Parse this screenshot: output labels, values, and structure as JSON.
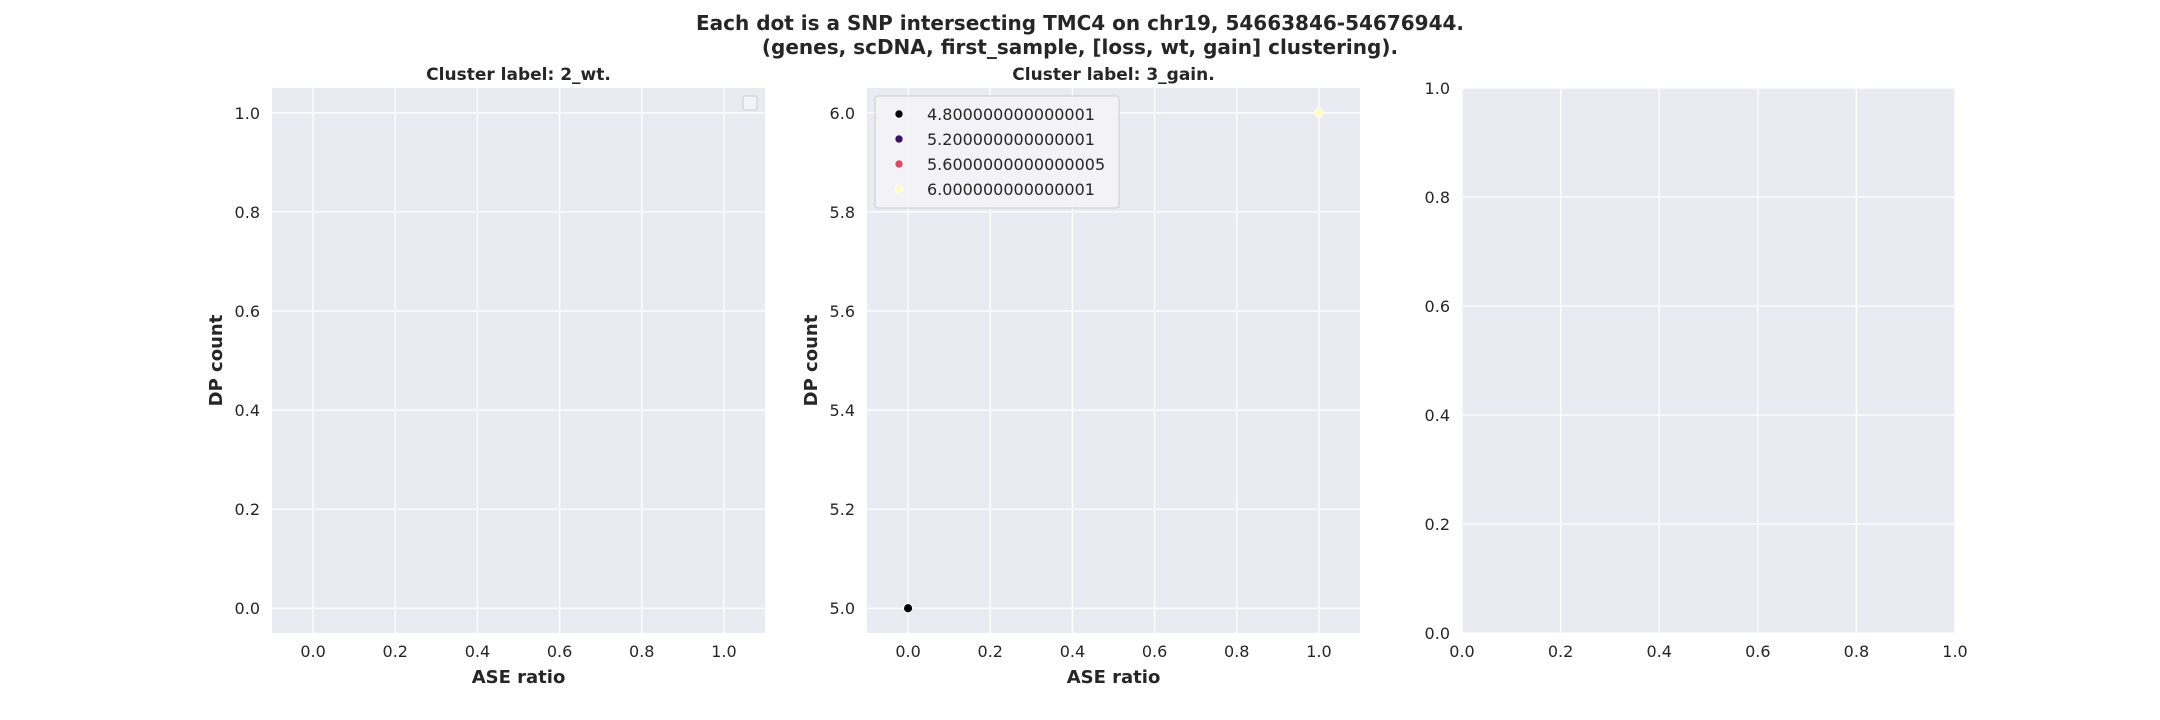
{
  "figure": {
    "suptitle_line1": "Each dot is a SNP intersecting TMC4 on chr19, 54663846-54676944.",
    "suptitle_line2": "(genes, scDNA, first_sample, [loss, wt, gain] clustering)."
  },
  "colors": {
    "axes_bg": "#EAEAF2",
    "grid": "#FFFFFF",
    "text": "#262626"
  },
  "chart_data": [
    {
      "type": "scatter",
      "title": "Cluster label: 2_wt.",
      "xlabel": "ASE ratio",
      "ylabel": "DP count",
      "xlim": [
        -0.1,
        1.1
      ],
      "ylim": [
        -0.05,
        1.05
      ],
      "xticks": [
        0.0,
        0.2,
        0.4,
        0.6,
        0.8,
        1.0
      ],
      "yticks": [
        0.0,
        0.2,
        0.4,
        0.6,
        0.8,
        1.0
      ],
      "xtick_labels": [
        "0.0",
        "0.2",
        "0.4",
        "0.6",
        "0.8",
        "1.0"
      ],
      "ytick_labels": [
        "0.0",
        "0.2",
        "0.4",
        "0.6",
        "0.8",
        "1.0"
      ],
      "grid": true,
      "legend": {
        "placement": "upper right",
        "entries": []
      },
      "points": []
    },
    {
      "type": "scatter",
      "title": "Cluster label: 3_gain.",
      "xlabel": "ASE ratio",
      "ylabel": "DP count",
      "xlim": [
        -0.1,
        1.1
      ],
      "ylim": [
        4.95,
        6.05
      ],
      "xticks": [
        0.0,
        0.2,
        0.4,
        0.6,
        0.8,
        1.0
      ],
      "yticks": [
        5.0,
        5.2,
        5.4,
        5.6,
        5.8,
        6.0
      ],
      "xtick_labels": [
        "0.0",
        "0.2",
        "0.4",
        "0.6",
        "0.8",
        "1.0"
      ],
      "ytick_labels": [
        "5.0",
        "5.2",
        "5.4",
        "5.6",
        "5.8",
        "6.0"
      ],
      "grid": true,
      "legend": {
        "placement": "upper left",
        "entries": [
          {
            "label": "4.800000000000001",
            "color": "#000004"
          },
          {
            "label": "5.200000000000001",
            "color": "#3B0F70"
          },
          {
            "label": "5.6000000000000005",
            "color": "#DE4968"
          },
          {
            "label": "6.000000000000001",
            "color": "#FCFDBF"
          }
        ]
      },
      "points": [
        {
          "x": 0.0,
          "y": 5.0,
          "color": "#000004"
        },
        {
          "x": 1.0,
          "y": 6.0,
          "color": "#FCFDBF"
        }
      ]
    },
    {
      "type": "scatter",
      "title": "",
      "xlabel": "",
      "ylabel": "",
      "xlim": [
        0.0,
        1.0
      ],
      "ylim": [
        0.0,
        1.0
      ],
      "xticks": [
        0.0,
        0.2,
        0.4,
        0.6,
        0.8,
        1.0
      ],
      "yticks": [
        0.0,
        0.2,
        0.4,
        0.6,
        0.8,
        1.0
      ],
      "xtick_labels": [
        "0.0",
        "0.2",
        "0.4",
        "0.6",
        "0.8",
        "1.0"
      ],
      "ytick_labels": [
        "0.0",
        "0.2",
        "0.4",
        "0.6",
        "0.8",
        "1.0"
      ],
      "grid": true,
      "legend": null,
      "points": []
    }
  ]
}
